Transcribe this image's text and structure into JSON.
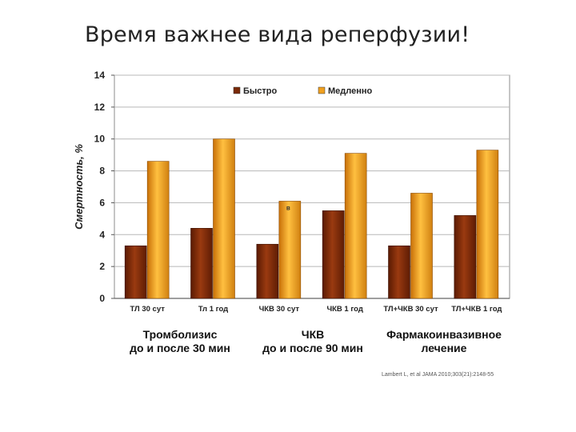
{
  "slide": {
    "title": "Время важнее вида реперфузии!",
    "citation": "Lambert L, et al JAMA 2010;303(21):2148-55"
  },
  "colors": {
    "fast": "#7a2a08",
    "slow": "#f0a020",
    "grid": "#b8b8b8"
  },
  "chart_data": {
    "type": "bar",
    "title": "",
    "xlabel": "",
    "ylabel": "Смертность, %",
    "ylim": [
      0,
      14
    ],
    "yticks": [
      0,
      2,
      4,
      6,
      8,
      10,
      12,
      14
    ],
    "grid": true,
    "legend_position": "top",
    "categories": [
      "ТЛ 30 сут",
      "Тл 1 год",
      "ЧКВ 30 сут",
      "ЧКВ 1 год",
      "ТЛ+ЧКВ 30 сут",
      "ТЛ+ЧКВ 1 год"
    ],
    "series": [
      {
        "name": "Быстро",
        "values": [
          3.3,
          4.4,
          3.4,
          5.5,
          3.3,
          5.2
        ]
      },
      {
        "name": "Медленно",
        "values": [
          8.6,
          10.0,
          6.1,
          9.1,
          6.6,
          9.3
        ]
      }
    ],
    "annotations": [
      "в"
    ],
    "group_labels": [
      "Тромболизис\nдо и после 30 мин",
      "ЧКВ\nдо и после 90 мин",
      "Фармакоинвазивное\nлечение"
    ]
  }
}
